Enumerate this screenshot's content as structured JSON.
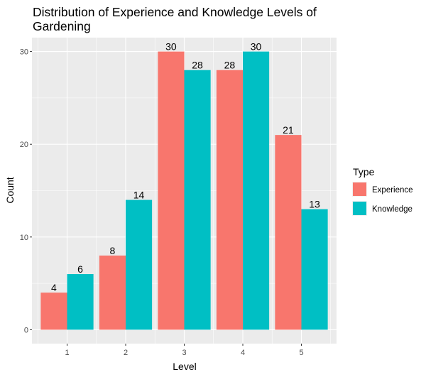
{
  "chart_data": {
    "type": "bar",
    "title": "Distribution of Experience and Knowledge Levels of Gardening",
    "title_lines": [
      "Distribution of Experience and Knowledge Levels of",
      "Gardening"
    ],
    "xlabel": "Level",
    "ylabel": "Count",
    "categories": [
      "1",
      "2",
      "3",
      "4",
      "5"
    ],
    "series": [
      {
        "name": "Experience",
        "values": [
          4,
          8,
          30,
          28,
          21
        ],
        "color": "#F8766D"
      },
      {
        "name": "Knowledge",
        "values": [
          6,
          14,
          28,
          30,
          13
        ],
        "color": "#00BFC4"
      }
    ],
    "yticks": [
      0,
      10,
      20,
      30
    ],
    "ylim": [
      -1.5,
      31.5
    ],
    "grid": true,
    "panel_background": "#EBEBEB",
    "grid_color": "#FFFFFF",
    "legend": {
      "title": "Type",
      "position": "right"
    }
  }
}
